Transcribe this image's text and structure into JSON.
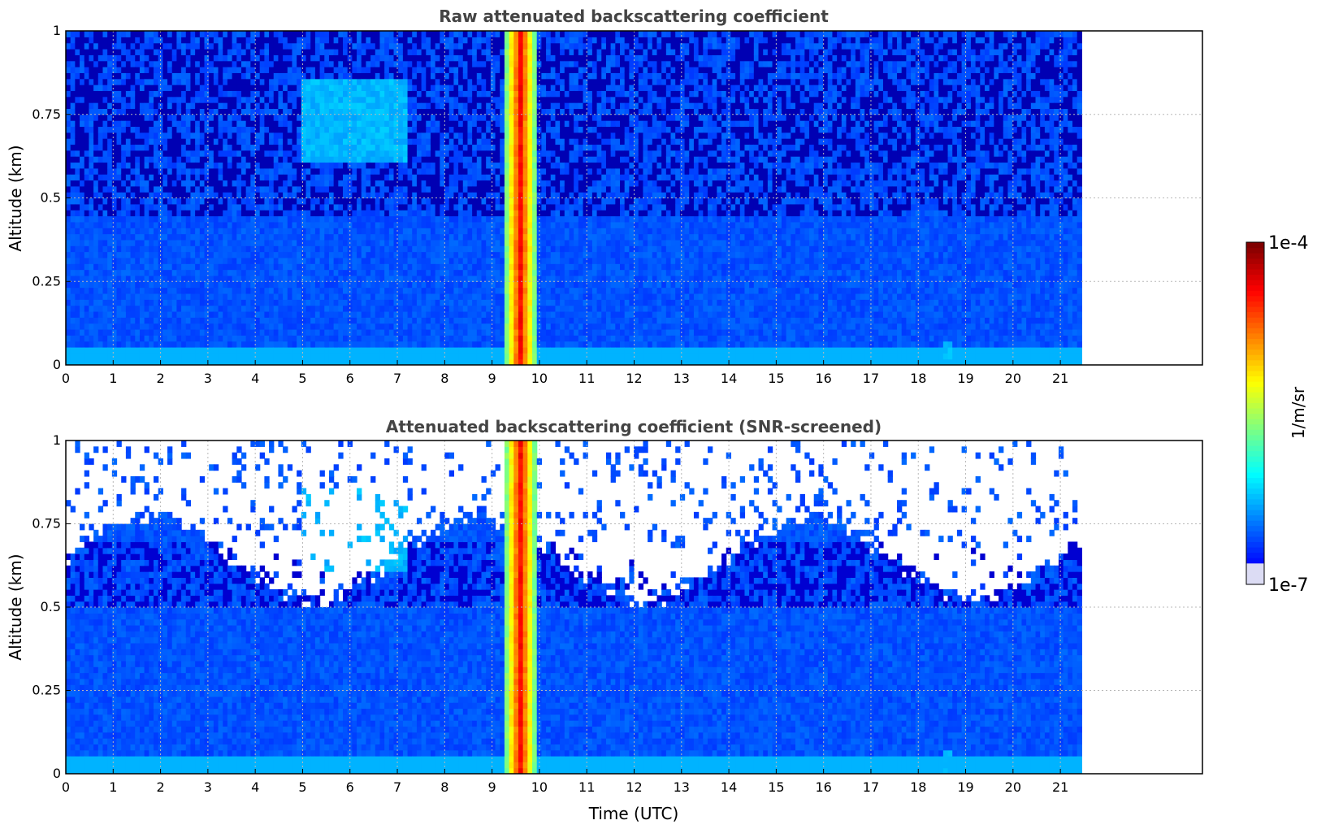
{
  "chart_data": [
    {
      "type": "heatmap",
      "title": "Raw attenuated backscattering coefficient",
      "xlabel": "",
      "ylabel": "Altitude (km)",
      "xlim": [
        0,
        24
      ],
      "ylim": [
        0,
        1
      ],
      "x_ticks": [
        0,
        1,
        2,
        3,
        4,
        5,
        6,
        7,
        8,
        9,
        10,
        11,
        12,
        13,
        14,
        15,
        16,
        17,
        18,
        19,
        20,
        21
      ],
      "y_ticks": [
        0,
        0.25,
        0.5,
        0.75,
        1
      ],
      "y_tick_labels": [
        "0",
        "0.25",
        "0.5",
        "0.75",
        "1"
      ],
      "grid": true,
      "data_extent_hours": [
        0,
        21.45
      ],
      "screened": false,
      "features": [
        {
          "kind": "precipitation_column",
          "start_hours": 9.25,
          "end_hours": 9.95,
          "altitude_range_km": [
            0,
            1
          ],
          "intensity": "high"
        },
        {
          "kind": "near_surface_layer",
          "altitude_range_km": [
            0,
            0.05
          ],
          "intensity": "moderate"
        },
        {
          "kind": "aerosol_plume",
          "start_hours": 5.0,
          "end_hours": 7.2,
          "altitude_range_km": [
            0.6,
            0.85
          ],
          "intensity": "moderate"
        },
        {
          "kind": "surface_spot",
          "start_hours": 18.5,
          "end_hours": 18.7,
          "altitude_range_km": [
            0,
            0.08
          ],
          "intensity": "moderate"
        }
      ]
    },
    {
      "type": "heatmap",
      "title": "Attenuated backscattering coefficient (SNR-screened)",
      "xlabel": "Time (UTC)",
      "ylabel": "Altitude (km)",
      "xlim": [
        0,
        24
      ],
      "ylim": [
        0,
        1
      ],
      "x_ticks": [
        0,
        1,
        2,
        3,
        4,
        5,
        6,
        7,
        8,
        9,
        10,
        11,
        12,
        13,
        14,
        15,
        16,
        17,
        18,
        19,
        20,
        21
      ],
      "y_ticks": [
        0,
        0.25,
        0.5,
        0.75,
        1
      ],
      "y_tick_labels": [
        "0",
        "0.25",
        "0.5",
        "0.75",
        "1"
      ],
      "grid": true,
      "data_extent_hours": [
        0,
        21.45
      ],
      "screened": true,
      "features": [
        {
          "kind": "precipitation_column",
          "start_hours": 9.25,
          "end_hours": 9.95,
          "altitude_range_km": [
            0,
            1
          ],
          "intensity": "high"
        },
        {
          "kind": "near_surface_layer",
          "altitude_range_km": [
            0,
            0.05
          ],
          "intensity": "moderate"
        },
        {
          "kind": "aerosol_plume",
          "start_hours": 5.0,
          "end_hours": 7.2,
          "altitude_range_km": [
            0.6,
            0.85
          ],
          "intensity": "moderate"
        },
        {
          "kind": "surface_spot",
          "start_hours": 18.5,
          "end_hours": 18.7,
          "altitude_range_km": [
            0,
            0.08
          ],
          "intensity": "moderate"
        }
      ]
    }
  ],
  "colorbar": {
    "label": "1/m/sr",
    "max_label": "1e-4",
    "min_label": "1e-7",
    "range": [
      1e-07,
      0.0001
    ],
    "scale": "log",
    "colormap": "jet"
  }
}
